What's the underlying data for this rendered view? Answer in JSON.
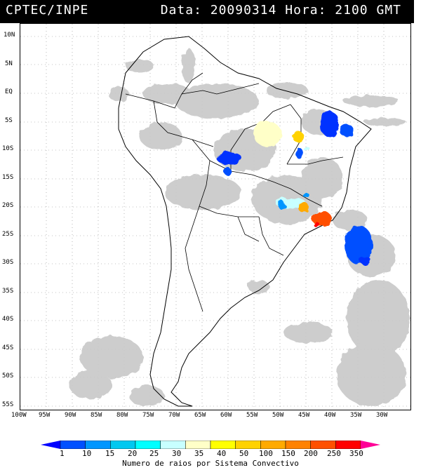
{
  "header": {
    "organization": "CPTEC/INPE",
    "datetime": "Data: 20090314 Hora: 2100 GMT"
  },
  "axes": {
    "lat_labels": [
      "10N",
      "5N",
      "EQ",
      "5S",
      "10S",
      "15S",
      "20S",
      "25S",
      "30S",
      "35S",
      "40S",
      "45S",
      "50S",
      "55S"
    ],
    "lon_labels": [
      "100W",
      "95W",
      "90W",
      "85W",
      "80W",
      "75W",
      "70W",
      "65W",
      "60W",
      "55W",
      "50W",
      "45W",
      "40W",
      "35W",
      "30W"
    ]
  },
  "legend": {
    "title": "Numero de raios por Sistema Convectivo",
    "ticks": [
      "1",
      "10",
      "15",
      "20",
      "25",
      "30",
      "35",
      "40",
      "50",
      "100",
      "150",
      "200",
      "250",
      "350"
    ],
    "colors": [
      "#0000ff",
      "#0050ff",
      "#0096ff",
      "#00c8f0",
      "#00ffff",
      "#c8ffff",
      "#ffffc8",
      "#ffff00",
      "#ffd200",
      "#ffaa00",
      "#ff8200",
      "#ff5000",
      "#ff0000",
      "#ff0096"
    ]
  },
  "features": {
    "clouds": "gray-cloud-cover",
    "lightning_clusters": [
      {
        "region": "northeast-brazil",
        "level": "1-10"
      },
      {
        "region": "central-brazil",
        "level": "30-35"
      },
      {
        "region": "tocantins",
        "level": "40-50"
      },
      {
        "region": "rondonia",
        "level": "1-10"
      },
      {
        "region": "minas-gerais",
        "level": "50-100"
      },
      {
        "region": "rio-de-janeiro",
        "level": "150-250"
      },
      {
        "region": "atlantic-offshore",
        "level": "1-10"
      }
    ]
  }
}
